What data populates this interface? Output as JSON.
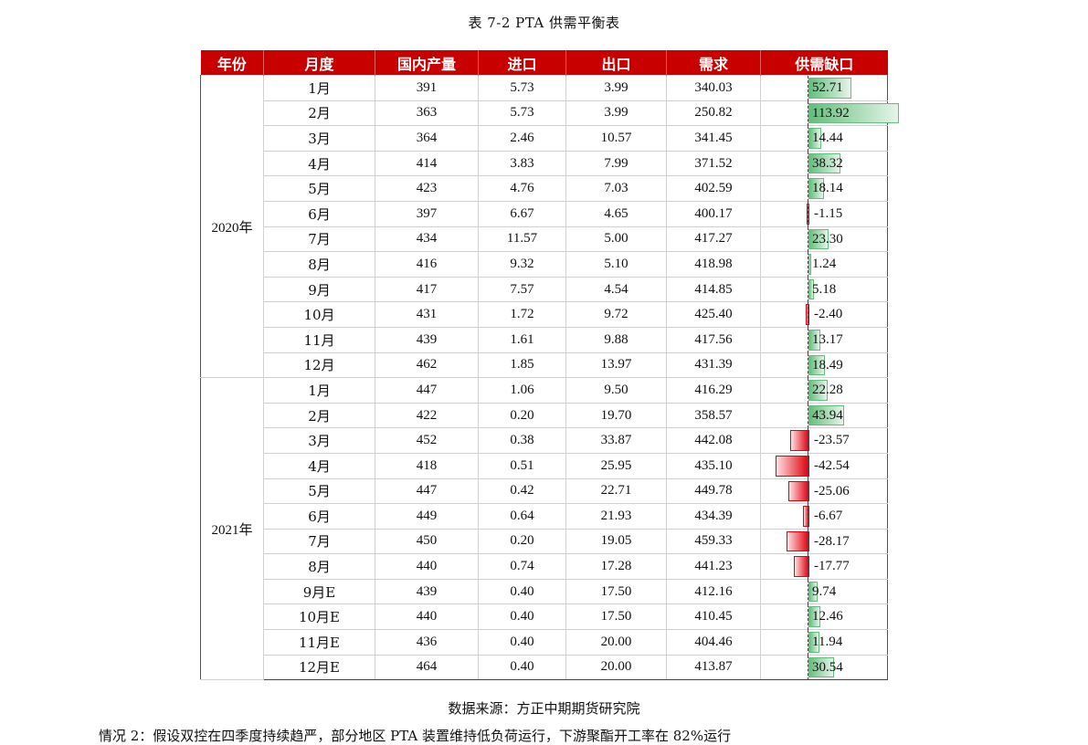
{
  "caption": "表 7-2 PTA 供需平衡表",
  "headers": [
    "年份",
    "月度",
    "国内产量",
    "进口",
    "出口",
    "需求",
    "供需缺口"
  ],
  "groups": [
    {
      "year": "2020年",
      "rows": [
        {
          "month": "1月",
          "output": "391",
          "import": "5.73",
          "export": "3.99",
          "demand": "340.03",
          "gap": "52.71"
        },
        {
          "month": "2月",
          "output": "363",
          "import": "5.73",
          "export": "3.99",
          "demand": "250.82",
          "gap": "113.92"
        },
        {
          "month": "3月",
          "output": "364",
          "import": "2.46",
          "export": "10.57",
          "demand": "341.45",
          "gap": "14.44"
        },
        {
          "month": "4月",
          "output": "414",
          "import": "3.83",
          "export": "7.99",
          "demand": "371.52",
          "gap": "38.32"
        },
        {
          "month": "5月",
          "output": "423",
          "import": "4.76",
          "export": "7.03",
          "demand": "402.59",
          "gap": "18.14"
        },
        {
          "month": "6月",
          "output": "397",
          "import": "6.67",
          "export": "4.65",
          "demand": "400.17",
          "gap": "-1.15"
        },
        {
          "month": "7月",
          "output": "434",
          "import": "11.57",
          "export": "5.00",
          "demand": "417.27",
          "gap": "23.30"
        },
        {
          "month": "8月",
          "output": "416",
          "import": "9.32",
          "export": "5.10",
          "demand": "418.98",
          "gap": "1.24"
        },
        {
          "month": "9月",
          "output": "417",
          "import": "7.57",
          "export": "4.54",
          "demand": "414.85",
          "gap": "5.18"
        },
        {
          "month": "10月",
          "output": "431",
          "import": "1.72",
          "export": "9.72",
          "demand": "425.40",
          "gap": "-2.40"
        },
        {
          "month": "11月",
          "output": "439",
          "import": "1.61",
          "export": "9.88",
          "demand": "417.56",
          "gap": "13.17"
        },
        {
          "month": "12月",
          "output": "462",
          "import": "1.85",
          "export": "13.97",
          "demand": "431.39",
          "gap": "18.49"
        }
      ]
    },
    {
      "year": "2021年",
      "rows": [
        {
          "month": "1月",
          "output": "447",
          "import": "1.06",
          "export": "9.50",
          "demand": "416.29",
          "gap": "22.28"
        },
        {
          "month": "2月",
          "output": "422",
          "import": "0.20",
          "export": "19.70",
          "demand": "358.57",
          "gap": "43.94"
        },
        {
          "month": "3月",
          "output": "452",
          "import": "0.38",
          "export": "33.87",
          "demand": "442.08",
          "gap": "-23.57"
        },
        {
          "month": "4月",
          "output": "418",
          "import": "0.51",
          "export": "25.95",
          "demand": "435.10",
          "gap": "-42.54"
        },
        {
          "month": "5月",
          "output": "447",
          "import": "0.42",
          "export": "22.71",
          "demand": "449.78",
          "gap": "-25.06"
        },
        {
          "month": "6月",
          "output": "449",
          "import": "0.64",
          "export": "21.93",
          "demand": "434.39",
          "gap": "-6.67"
        },
        {
          "month": "7月",
          "output": "450",
          "import": "0.20",
          "export": "19.05",
          "demand": "459.33",
          "gap": "-28.17"
        },
        {
          "month": "8月",
          "output": "440",
          "import": "0.74",
          "export": "17.28",
          "demand": "441.23",
          "gap": "-17.77"
        },
        {
          "month": "9月E",
          "output": "439",
          "import": "0.40",
          "export": "17.50",
          "demand": "412.16",
          "gap": "9.74"
        },
        {
          "month": "10月E",
          "output": "440",
          "import": "0.40",
          "export": "17.50",
          "demand": "410.45",
          "gap": "12.46"
        },
        {
          "month": "11月E",
          "output": "436",
          "import": "0.40",
          "export": "20.00",
          "demand": "404.46",
          "gap": "11.94"
        },
        {
          "month": "12月E",
          "output": "464",
          "import": "0.40",
          "export": "20.00",
          "demand": "413.87",
          "gap": "30.54"
        }
      ]
    }
  ],
  "colors": {
    "header_bg": "#c80000",
    "positive_bar": "#63be7b",
    "negative_bar": "#e0000f"
  },
  "source": "数据来源：方正中期期货研究院",
  "footer_text": "情况 2：假设双控在四季度持续趋严，部分地区 PTA 装置维持低负荷运行，下游聚酯开工率在 82%运行"
}
